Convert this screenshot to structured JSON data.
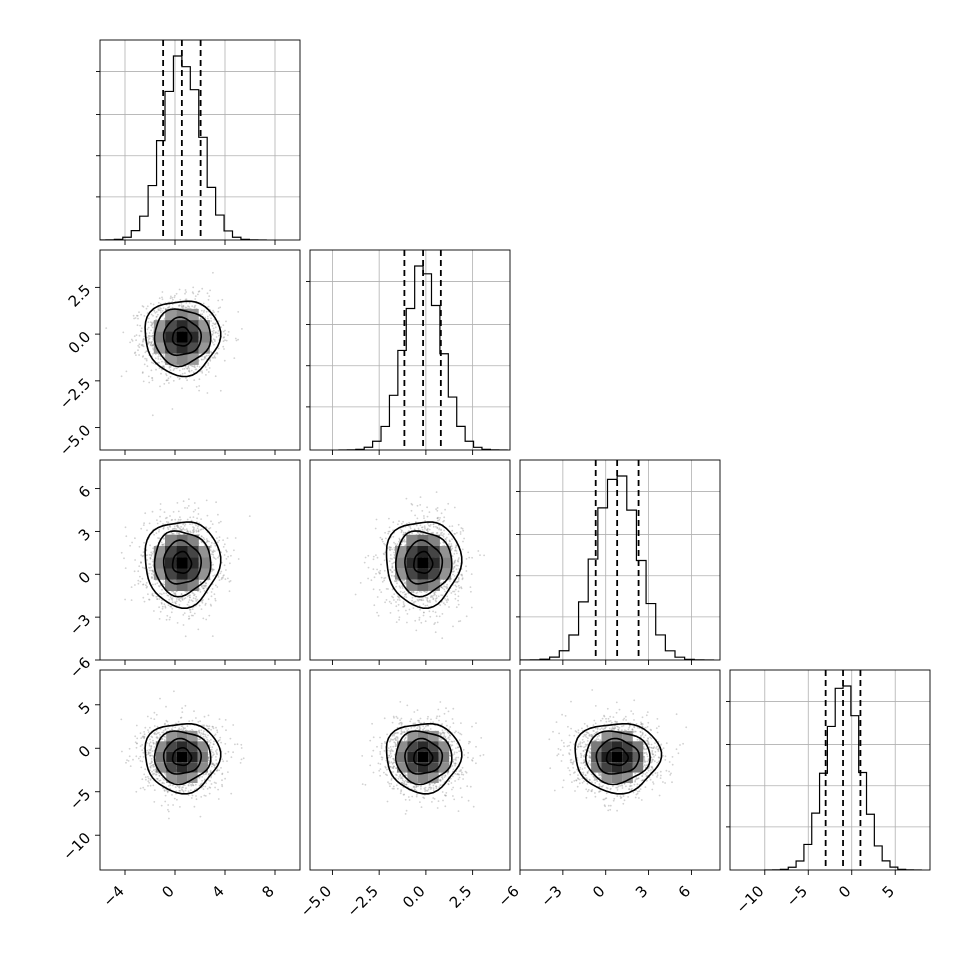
{
  "chart_data": {
    "type": "corner",
    "n_params": 4,
    "grid": true,
    "hist_bins": 20,
    "colors": {
      "line": "#000000",
      "grid": "#b0b0b0",
      "scatter": "#9a9a9a"
    },
    "parameters": [
      {
        "range": [
          -6,
          10
        ],
        "ticks": [
          -4,
          0,
          4,
          8
        ],
        "tick_labels": [
          "−4",
          "0",
          "4",
          "8"
        ],
        "mean": 0.55,
        "sd": 1.5,
        "quantiles": [
          -0.95,
          0.55,
          2.05
        ]
      },
      {
        "range": [
          -6.2,
          4.5
        ],
        "ticks": [
          -5.0,
          -2.5,
          0.0,
          2.5
        ],
        "tick_labels": [
          "−5.0",
          "−2.5",
          "0.0",
          "2.5"
        ],
        "mean": -0.15,
        "sd": 1.0,
        "quantiles": [
          -1.15,
          -0.15,
          0.8
        ]
      },
      {
        "range": [
          -6,
          8
        ],
        "ticks": [
          -6,
          -3,
          0,
          3,
          6
        ],
        "tick_labels": [
          "−6",
          "−3",
          "0",
          "3",
          "6"
        ],
        "mean": 0.8,
        "sd": 1.5,
        "quantiles": [
          -0.7,
          0.8,
          2.3
        ]
      },
      {
        "range": [
          -14,
          9
        ],
        "ticks": [
          -10,
          -5,
          0,
          5
        ],
        "tick_labels": [
          "−10",
          "−5",
          "0",
          "5"
        ],
        "mean": -1.0,
        "sd": 2.0,
        "quantiles": [
          -3.0,
          -1.0,
          1.0
        ]
      }
    ]
  }
}
